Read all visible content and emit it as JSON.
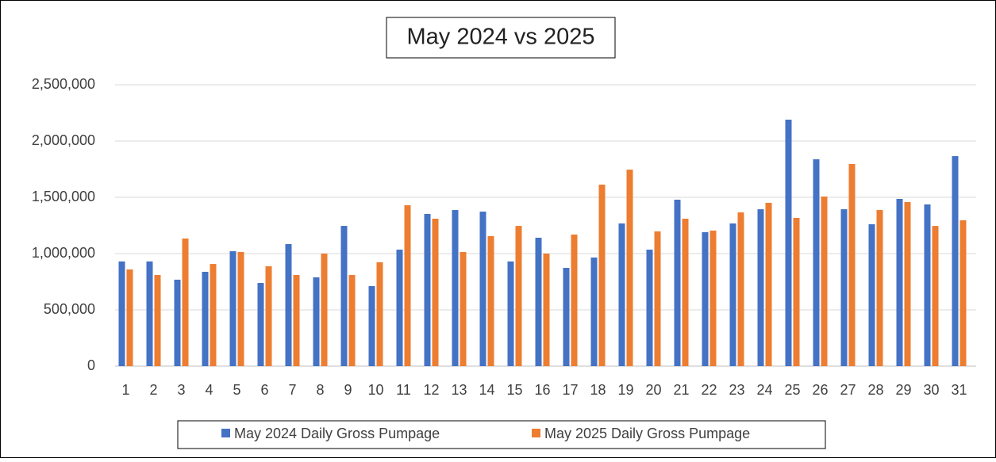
{
  "chart_data": {
    "type": "bar",
    "title": "May 2024 vs 2025",
    "categories": [
      "1",
      "2",
      "3",
      "4",
      "5",
      "6",
      "7",
      "8",
      "9",
      "10",
      "11",
      "12",
      "13",
      "14",
      "15",
      "16",
      "17",
      "18",
      "19",
      "20",
      "21",
      "22",
      "23",
      "24",
      "25",
      "26",
      "27",
      "28",
      "29",
      "30",
      "31"
    ],
    "series": [
      {
        "name": "May 2024 Daily Gross Pumpage",
        "color": "#4472c4",
        "values": [
          930000,
          930000,
          768000,
          838000,
          1021000,
          739000,
          1085000,
          789000,
          1246000,
          711000,
          1035000,
          1352000,
          1387000,
          1373000,
          930000,
          1141000,
          873000,
          965000,
          1268000,
          1035000,
          1479000,
          1190000,
          1268000,
          1394000,
          2190000,
          1838000,
          1394000,
          1261000,
          1486000,
          1437000,
          1866000
        ]
      },
      {
        "name": "May 2025 Daily Gross Pumpage",
        "color": "#ed7d31",
        "values": [
          859000,
          810000,
          1134000,
          908000,
          1014000,
          887000,
          810000,
          1000000,
          810000,
          923000,
          1430000,
          1310000,
          1014000,
          1155000,
          1246000,
          1000000,
          1169000,
          1613000,
          1746000,
          1197000,
          1310000,
          1204000,
          1366000,
          1451000,
          1317000,
          1507000,
          1796000,
          1387000,
          1458000,
          1246000,
          1296000
        ]
      }
    ],
    "ylim": [
      0,
      2500000
    ],
    "yticks": [
      0,
      {
        "value": 500000,
        "label": "500,000"
      },
      {
        "value": 1000000,
        "label": "1,000,000"
      },
      {
        "value": 1500000,
        "label": "1,500,000"
      },
      {
        "value": 2000000,
        "label": "2,000,000"
      },
      {
        "value": 2500000,
        "label": "2,500,000"
      }
    ],
    "grid": true,
    "legend": "bottom"
  }
}
